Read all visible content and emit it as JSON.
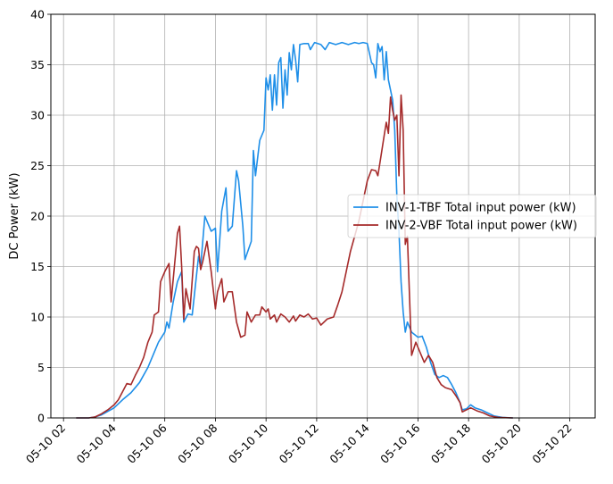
{
  "chart_data": {
    "type": "line",
    "title": "",
    "xlabel": "",
    "ylabel": "DC Power (kW)",
    "grid": true,
    "legend_position": "right",
    "xlim": [
      "05-10 01:30",
      "05-10 23:00"
    ],
    "ylim": [
      0,
      40
    ],
    "x_ticks": [
      "05-10 02",
      "05-10 04",
      "05-10 06",
      "05-10 08",
      "05-10 10",
      "05-10 12",
      "05-10 14",
      "05-10 16",
      "05-10 18",
      "05-10 20",
      "05-10 22"
    ],
    "y_ticks": [
      "0",
      "5",
      "10",
      "15",
      "20",
      "25",
      "30",
      "35",
      "40"
    ],
    "series": [
      {
        "name": "INV-1-TBF Total input power (kW)",
        "color": "#1f8fe8",
        "points": [
          [
            "05-10 02:30",
            0
          ],
          [
            "05-10 03:00",
            0
          ],
          [
            "05-10 03:15",
            0.1
          ],
          [
            "05-10 03:30",
            0.3
          ],
          [
            "05-10 04:00",
            1.0
          ],
          [
            "05-10 04:20",
            1.8
          ],
          [
            "05-10 04:40",
            2.5
          ],
          [
            "05-10 05:00",
            3.5
          ],
          [
            "05-10 05:20",
            5.0
          ],
          [
            "05-10 05:35",
            6.5
          ],
          [
            "05-10 05:45",
            7.5
          ],
          [
            "05-10 06:00",
            8.5
          ],
          [
            "05-10 06:05",
            9.5
          ],
          [
            "05-10 06:10",
            8.9
          ],
          [
            "05-10 06:20",
            11.5
          ],
          [
            "05-10 06:30",
            13.5
          ],
          [
            "05-10 06:40",
            14.5
          ],
          [
            "05-10 06:45",
            9.5
          ],
          [
            "05-10 06:55",
            10.3
          ],
          [
            "05-10 07:05",
            10.2
          ],
          [
            "05-10 07:20",
            16.0
          ],
          [
            "05-10 07:25",
            15.0
          ],
          [
            "05-10 07:35",
            20.0
          ],
          [
            "05-10 07:40",
            19.5
          ],
          [
            "05-10 07:50",
            18.5
          ],
          [
            "05-10 08:00",
            18.8
          ],
          [
            "05-10 08:05",
            14.5
          ],
          [
            "05-10 08:15",
            20.5
          ],
          [
            "05-10 08:25",
            22.8
          ],
          [
            "05-10 08:30",
            18.5
          ],
          [
            "05-10 08:40",
            19.0
          ],
          [
            "05-10 08:50",
            24.5
          ],
          [
            "05-10 08:55",
            23.5
          ],
          [
            "05-10 09:05",
            19.0
          ],
          [
            "05-10 09:10",
            15.7
          ],
          [
            "05-10 09:25",
            17.5
          ],
          [
            "05-10 09:30",
            26.5
          ],
          [
            "05-10 09:35",
            24.0
          ],
          [
            "05-10 09:45",
            27.5
          ],
          [
            "05-10 09:55",
            28.5
          ],
          [
            "05-10 10:00",
            33.7
          ],
          [
            "05-10 10:05",
            32.5
          ],
          [
            "05-10 10:10",
            34.0
          ],
          [
            "05-10 10:15",
            30.5
          ],
          [
            "05-10 10:20",
            34.0
          ],
          [
            "05-10 10:25",
            31.0
          ],
          [
            "05-10 10:30",
            35.2
          ],
          [
            "05-10 10:35",
            35.7
          ],
          [
            "05-10 10:40",
            30.7
          ],
          [
            "05-10 10:45",
            34.5
          ],
          [
            "05-10 10:50",
            32.0
          ],
          [
            "05-10 10:55",
            36.2
          ],
          [
            "05-10 11:00",
            34.5
          ],
          [
            "05-10 11:05",
            37.0
          ],
          [
            "05-10 11:10",
            35.5
          ],
          [
            "05-10 11:15",
            33.3
          ],
          [
            "05-10 11:20",
            37.0
          ],
          [
            "05-10 11:30",
            37.1
          ],
          [
            "05-10 11:40",
            37.1
          ],
          [
            "05-10 11:45",
            36.5
          ],
          [
            "05-10 11:55",
            37.2
          ],
          [
            "05-10 12:10",
            37.0
          ],
          [
            "05-10 12:20",
            36.5
          ],
          [
            "05-10 12:30",
            37.2
          ],
          [
            "05-10 12:45",
            37.0
          ],
          [
            "05-10 13:00",
            37.2
          ],
          [
            "05-10 13:15",
            37.0
          ],
          [
            "05-10 13:30",
            37.2
          ],
          [
            "05-10 13:40",
            37.1
          ],
          [
            "05-10 13:50",
            37.2
          ],
          [
            "05-10 14:00",
            37.1
          ],
          [
            "05-10 14:10",
            35.2
          ],
          [
            "05-10 14:15",
            35.0
          ],
          [
            "05-10 14:20",
            33.7
          ],
          [
            "05-10 14:25",
            37.1
          ],
          [
            "05-10 14:30",
            36.3
          ],
          [
            "05-10 14:35",
            36.8
          ],
          [
            "05-10 14:40",
            33.5
          ],
          [
            "05-10 14:45",
            36.3
          ],
          [
            "05-10 14:50",
            33.5
          ],
          [
            "05-10 15:00",
            31.5
          ],
          [
            "05-10 15:05",
            28.5
          ],
          [
            "05-10 15:10",
            22.0
          ],
          [
            "05-10 15:15",
            18.5
          ],
          [
            "05-10 15:20",
            13.5
          ],
          [
            "05-10 15:25",
            10.5
          ],
          [
            "05-10 15:30",
            8.5
          ],
          [
            "05-10 15:35",
            9.5
          ],
          [
            "05-10 15:45",
            8.5
          ],
          [
            "05-10 16:00",
            8.0
          ],
          [
            "05-10 16:10",
            8.1
          ],
          [
            "05-10 16:20",
            7.0
          ],
          [
            "05-10 16:30",
            5.5
          ],
          [
            "05-10 16:40",
            4.3
          ],
          [
            "05-10 16:50",
            4.0
          ],
          [
            "05-10 17:00",
            4.2
          ],
          [
            "05-10 17:10",
            4.0
          ],
          [
            "05-10 17:20",
            3.3
          ],
          [
            "05-10 17:30",
            2.5
          ],
          [
            "05-10 17:40",
            1.5
          ],
          [
            "05-10 17:45",
            0.8
          ],
          [
            "05-10 17:55",
            0.9
          ],
          [
            "05-10 18:05",
            1.3
          ],
          [
            "05-10 18:15",
            1.0
          ],
          [
            "05-10 18:30",
            0.8
          ],
          [
            "05-10 18:45",
            0.5
          ],
          [
            "05-10 19:00",
            0.2
          ],
          [
            "05-10 19:20",
            0.05
          ],
          [
            "05-10 19:45",
            0
          ]
        ]
      },
      {
        "name": "INV-2-VBF Total input power (kW)",
        "color": "#a52a2a",
        "points": [
          [
            "05-10 02:30",
            0
          ],
          [
            "05-10 03:00",
            0
          ],
          [
            "05-10 03:15",
            0.1
          ],
          [
            "05-10 03:30",
            0.4
          ],
          [
            "05-10 03:45",
            0.8
          ],
          [
            "05-10 04:00",
            1.3
          ],
          [
            "05-10 04:10",
            1.8
          ],
          [
            "05-10 04:20",
            2.6
          ],
          [
            "05-10 04:30",
            3.4
          ],
          [
            "05-10 04:40",
            3.3
          ],
          [
            "05-10 04:50",
            4.2
          ],
          [
            "05-10 05:00",
            5.0
          ],
          [
            "05-10 05:10",
            6.0
          ],
          [
            "05-10 05:20",
            7.5
          ],
          [
            "05-10 05:30",
            8.5
          ],
          [
            "05-10 05:35",
            10.2
          ],
          [
            "05-10 05:45",
            10.5
          ],
          [
            "05-10 05:50",
            13.5
          ],
          [
            "05-10 06:00",
            14.5
          ],
          [
            "05-10 06:10",
            15.3
          ],
          [
            "05-10 06:15",
            11.5
          ],
          [
            "05-10 06:25",
            16.0
          ],
          [
            "05-10 06:30",
            18.3
          ],
          [
            "05-10 06:35",
            19.0
          ],
          [
            "05-10 06:40",
            15.0
          ],
          [
            "05-10 06:45",
            9.8
          ],
          [
            "05-10 06:50",
            12.8
          ],
          [
            "05-10 07:00",
            10.8
          ],
          [
            "05-10 07:10",
            16.5
          ],
          [
            "05-10 07:15",
            17.0
          ],
          [
            "05-10 07:20",
            16.8
          ],
          [
            "05-10 07:25",
            14.7
          ],
          [
            "05-10 07:30",
            15.5
          ],
          [
            "05-10 07:40",
            17.5
          ],
          [
            "05-10 07:50",
            14.5
          ],
          [
            "05-10 08:00",
            10.8
          ],
          [
            "05-10 08:05",
            12.5
          ],
          [
            "05-10 08:15",
            13.8
          ],
          [
            "05-10 08:20",
            11.5
          ],
          [
            "05-10 08:30",
            12.5
          ],
          [
            "05-10 08:40",
            12.5
          ],
          [
            "05-10 08:50",
            9.5
          ],
          [
            "05-10 09:00",
            8.0
          ],
          [
            "05-10 09:10",
            8.2
          ],
          [
            "05-10 09:15",
            10.5
          ],
          [
            "05-10 09:25",
            9.5
          ],
          [
            "05-10 09:35",
            10.2
          ],
          [
            "05-10 09:45",
            10.2
          ],
          [
            "05-10 09:50",
            11.0
          ],
          [
            "05-10 10:00",
            10.5
          ],
          [
            "05-10 10:05",
            10.8
          ],
          [
            "05-10 10:10",
            9.8
          ],
          [
            "05-10 10:20",
            10.2
          ],
          [
            "05-10 10:25",
            9.5
          ],
          [
            "05-10 10:35",
            10.3
          ],
          [
            "05-10 10:45",
            10.0
          ],
          [
            "05-10 10:55",
            9.5
          ],
          [
            "05-10 11:05",
            10.1
          ],
          [
            "05-10 11:10",
            9.6
          ],
          [
            "05-10 11:20",
            10.2
          ],
          [
            "05-10 11:30",
            10.0
          ],
          [
            "05-10 11:40",
            10.3
          ],
          [
            "05-10 11:50",
            9.8
          ],
          [
            "05-10 12:00",
            9.9
          ],
          [
            "05-10 12:10",
            9.2
          ],
          [
            "05-10 12:25",
            9.8
          ],
          [
            "05-10 12:40",
            10.0
          ],
          [
            "05-10 12:50",
            11.2
          ],
          [
            "05-10 13:00",
            12.5
          ],
          [
            "05-10 13:10",
            14.5
          ],
          [
            "05-10 13:20",
            16.5
          ],
          [
            "05-10 13:30",
            18.0
          ],
          [
            "05-10 13:40",
            19.5
          ],
          [
            "05-10 13:50",
            21.5
          ],
          [
            "05-10 14:00",
            23.5
          ],
          [
            "05-10 14:10",
            24.6
          ],
          [
            "05-10 14:20",
            24.5
          ],
          [
            "05-10 14:25",
            24.0
          ],
          [
            "05-10 14:30",
            25.3
          ],
          [
            "05-10 14:40",
            28.0
          ],
          [
            "05-10 14:45",
            29.3
          ],
          [
            "05-10 14:50",
            28.2
          ],
          [
            "05-10 14:55",
            31.8
          ],
          [
            "05-10 15:00",
            30.5
          ],
          [
            "05-10 15:05",
            29.5
          ],
          [
            "05-10 15:10",
            30.0
          ],
          [
            "05-10 15:15",
            24.0
          ],
          [
            "05-10 15:20",
            32.0
          ],
          [
            "05-10 15:25",
            28.5
          ],
          [
            "05-10 15:30",
            17.2
          ],
          [
            "05-10 15:35",
            18.0
          ],
          [
            "05-10 15:45",
            6.2
          ],
          [
            "05-10 15:55",
            7.5
          ],
          [
            "05-10 16:05",
            6.5
          ],
          [
            "05-10 16:15",
            5.5
          ],
          [
            "05-10 16:25",
            6.2
          ],
          [
            "05-10 16:35",
            5.5
          ],
          [
            "05-10 16:45",
            4.0
          ],
          [
            "05-10 16:55",
            3.3
          ],
          [
            "05-10 17:05",
            3.0
          ],
          [
            "05-10 17:20",
            2.8
          ],
          [
            "05-10 17:30",
            2.2
          ],
          [
            "05-10 17:40",
            1.5
          ],
          [
            "05-10 17:45",
            0.6
          ],
          [
            "05-10 17:55",
            0.8
          ],
          [
            "05-10 18:05",
            1.0
          ],
          [
            "05-10 18:20",
            0.7
          ],
          [
            "05-10 18:35",
            0.5
          ],
          [
            "05-10 18:50",
            0.2
          ],
          [
            "05-10 19:10",
            0.05
          ],
          [
            "05-10 19:45",
            0
          ]
        ]
      }
    ]
  }
}
